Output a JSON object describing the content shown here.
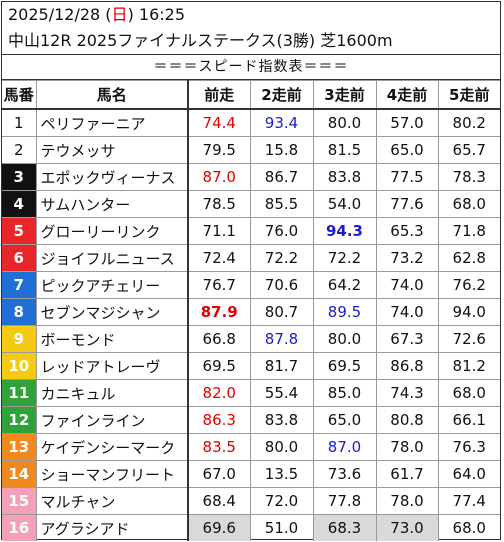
{
  "header": {
    "date": "2025/12/28",
    "day_open": " (",
    "day": "日",
    "day_close": ") ",
    "time": "16:25",
    "race": "中山12R 2025ファイナルステークス(3勝) 芝1600m"
  },
  "subtitle": "＝＝＝スピード指数表＝＝＝",
  "columns": [
    "馬番",
    "馬名",
    "前走",
    "2走前",
    "3走前",
    "4走前",
    "5走前"
  ],
  "rows": [
    {
      "num": "1",
      "name": "ペリファーニア",
      "v": [
        "74.4",
        "93.4",
        "80.0",
        "57.0",
        "80.2"
      ]
    },
    {
      "num": "2",
      "name": "テウメッサ",
      "v": [
        "79.5",
        "15.8",
        "81.5",
        "65.0",
        "65.7"
      ]
    },
    {
      "num": "3",
      "name": "エポックヴィーナス",
      "v": [
        "87.0",
        "86.7",
        "83.8",
        "77.5",
        "78.3"
      ]
    },
    {
      "num": "4",
      "name": "サムハンター",
      "v": [
        "78.5",
        "85.5",
        "54.0",
        "77.6",
        "68.0"
      ]
    },
    {
      "num": "5",
      "name": "グローリーリンク",
      "v": [
        "71.1",
        "76.0",
        "94.3",
        "65.3",
        "71.8"
      ]
    },
    {
      "num": "6",
      "name": "ジョイフルニュース",
      "v": [
        "72.4",
        "72.2",
        "72.2",
        "73.2",
        "62.8"
      ]
    },
    {
      "num": "7",
      "name": "ピックアチェリー",
      "v": [
        "76.7",
        "70.6",
        "64.2",
        "74.0",
        "76.2"
      ]
    },
    {
      "num": "8",
      "name": "セブンマジシャン",
      "v": [
        "87.9",
        "80.7",
        "89.5",
        "74.0",
        "94.0"
      ]
    },
    {
      "num": "9",
      "name": "ボーモンド",
      "v": [
        "66.8",
        "87.8",
        "80.0",
        "67.3",
        "72.6"
      ]
    },
    {
      "num": "10",
      "name": "レッドアトレーヴ",
      "v": [
        "69.5",
        "81.7",
        "69.5",
        "86.8",
        "81.2"
      ]
    },
    {
      "num": "11",
      "name": "カニキュル",
      "v": [
        "82.0",
        "55.4",
        "85.0",
        "74.3",
        "68.0"
      ]
    },
    {
      "num": "12",
      "name": "ファインライン",
      "v": [
        "86.3",
        "83.8",
        "65.0",
        "80.8",
        "66.1"
      ]
    },
    {
      "num": "13",
      "name": "ケイデンシーマーク",
      "v": [
        "83.5",
        "80.0",
        "87.0",
        "78.0",
        "76.3"
      ]
    },
    {
      "num": "14",
      "name": "ショーマンフリート",
      "v": [
        "67.0",
        "13.5",
        "73.6",
        "61.7",
        "64.0"
      ]
    },
    {
      "num": "15",
      "name": "マルチャン",
      "v": [
        "68.4",
        "72.0",
        "77.8",
        "78.0",
        "77.4"
      ]
    },
    {
      "num": "16",
      "name": "アグラシアド",
      "v": [
        "69.6",
        "51.0",
        "68.3",
        "73.0",
        "68.0"
      ]
    }
  ],
  "colors": {
    "gate": [
      "#ffffff",
      "#111111",
      "#e8262a",
      "#1f6fd6",
      "#f6c912",
      "#2fa23a",
      "#f08a1f",
      "#f4a0b8"
    ],
    "text_red": "#e00000",
    "text_blue": "#1c1ccf"
  }
}
